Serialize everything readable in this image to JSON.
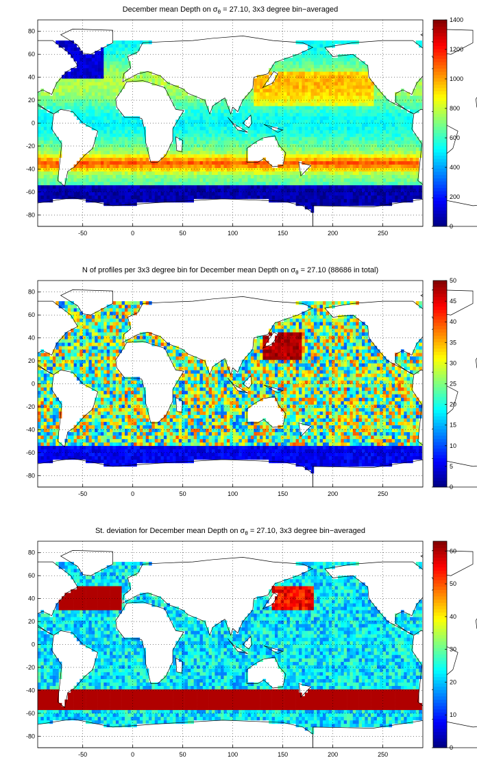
{
  "chart_data": [
    {
      "type": "heatmap",
      "title_pre": "December mean Depth on σ",
      "title_sub": "θ",
      "title_post": " = 27.10, 3x3 degree bin−averaged",
      "xlim": [
        -95,
        290
      ],
      "ylim": [
        -90,
        90
      ],
      "xticks": [
        -50,
        0,
        50,
        100,
        150,
        200,
        250
      ],
      "yticks": [
        80,
        60,
        40,
        20,
        0,
        -20,
        -40,
        -60,
        -80
      ],
      "colorbar": {
        "min": 0,
        "max": 1400,
        "ticks": [
          0,
          200,
          400,
          600,
          800,
          1000,
          1200,
          1400
        ]
      },
      "field": "depth",
      "grid": true
    },
    {
      "type": "heatmap",
      "title_pre": "N of profiles per 3x3 degree bin for December mean Depth on σ",
      "title_sub": "θ",
      "title_post": " = 27.10 (88686 in total)",
      "xlim": [
        -95,
        290
      ],
      "ylim": [
        -90,
        90
      ],
      "xticks": [
        -50,
        0,
        50,
        100,
        150,
        200,
        250
      ],
      "yticks": [
        80,
        60,
        40,
        20,
        0,
        -20,
        -40,
        -60,
        -80
      ],
      "colorbar": {
        "min": 0,
        "max": 50,
        "ticks": [
          0,
          5,
          10,
          15,
          20,
          25,
          30,
          35,
          40,
          45,
          50
        ]
      },
      "field": "count",
      "grid": true
    },
    {
      "type": "heatmap",
      "title_pre": "St. deviation for December mean Depth on σ",
      "title_sub": "θ",
      "title_post": " = 27.10, 3x3 degree bin−averaged",
      "xlim": [
        -95,
        290
      ],
      "ylim": [
        -90,
        90
      ],
      "xticks": [
        -50,
        0,
        50,
        100,
        150,
        200,
        250
      ],
      "yticks": [
        80,
        60,
        40,
        20,
        0,
        -20,
        -40,
        -60,
        -80
      ],
      "colorbar": {
        "min": 0,
        "max": 63,
        "ticks": [
          0,
          10,
          20,
          30,
          40,
          50,
          60
        ]
      },
      "field": "std",
      "grid": true
    }
  ]
}
